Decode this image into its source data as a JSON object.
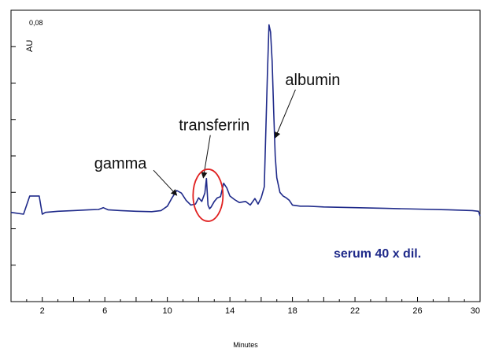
{
  "chart_data": {
    "type": "line",
    "xlabel": "Minutes",
    "ylabel": "AU",
    "y_top_label": "0,08",
    "xlim": [
      0,
      30
    ],
    "ylim": [
      0,
      0.08
    ],
    "x_tick_labels": [
      "2",
      "6",
      "10",
      "14",
      "18",
      "22",
      "26",
      "30"
    ],
    "x_tick_values": [
      2,
      6,
      10,
      14,
      18,
      22,
      26,
      30
    ],
    "grid": false,
    "series": [
      {
        "name": "serum 40 x dil.",
        "color": "#1f2a8a",
        "x": [
          0,
          0.8,
          1.2,
          1.5,
          1.8,
          2.0,
          2.2,
          3.0,
          4.0,
          5.0,
          5.6,
          5.9,
          6.2,
          7.0,
          8.0,
          9.0,
          9.6,
          10.0,
          10.3,
          10.6,
          10.9,
          11.2,
          11.5,
          11.8,
          12.0,
          12.2,
          12.4,
          12.5,
          12.6,
          12.7,
          12.8,
          13.0,
          13.2,
          13.4,
          13.6,
          13.8,
          14.0,
          14.3,
          14.6,
          15.0,
          15.3,
          15.6,
          15.8,
          16.0,
          16.2,
          16.4,
          16.5,
          16.6,
          16.7,
          16.8,
          16.9,
          17.0,
          17.2,
          17.4,
          17.6,
          17.8,
          18.0,
          18.5,
          19.0,
          20.0,
          22.0,
          24.0,
          26.0,
          28.0,
          29.5,
          29.9,
          30.0
        ],
        "y": [
          0.0245,
          0.024,
          0.029,
          0.029,
          0.029,
          0.024,
          0.0245,
          0.0248,
          0.025,
          0.0252,
          0.0253,
          0.0258,
          0.0252,
          0.025,
          0.0248,
          0.0247,
          0.025,
          0.0262,
          0.0285,
          0.0305,
          0.0298,
          0.0278,
          0.0265,
          0.0268,
          0.0285,
          0.0275,
          0.0298,
          0.0338,
          0.0265,
          0.0255,
          0.026,
          0.0275,
          0.0285,
          0.0288,
          0.0325,
          0.0312,
          0.029,
          0.028,
          0.0272,
          0.0275,
          0.0265,
          0.0283,
          0.0268,
          0.0285,
          0.0315,
          0.0625,
          0.076,
          0.074,
          0.066,
          0.052,
          0.04,
          0.034,
          0.03,
          0.029,
          0.0285,
          0.0278,
          0.0265,
          0.0262,
          0.0262,
          0.026,
          0.0258,
          0.0256,
          0.0254,
          0.0252,
          0.025,
          0.0248,
          0.0235
        ]
      }
    ],
    "annotations": [
      {
        "text": "albumin",
        "x": 19.3,
        "y": 0.0595,
        "arrow_to": [
          16.9,
          0.045
        ]
      },
      {
        "text": "transferrin",
        "x": 13.0,
        "y": 0.047,
        "arrow_to": [
          12.3,
          0.034
        ]
      },
      {
        "text": "gamma",
        "x": 7.0,
        "y": 0.0365,
        "arrow_to": [
          10.6,
          0.0292
        ]
      }
    ],
    "highlight": {
      "shape": "ellipse",
      "x": 12.6,
      "y": 0.0292,
      "color": "#e02020"
    }
  }
}
